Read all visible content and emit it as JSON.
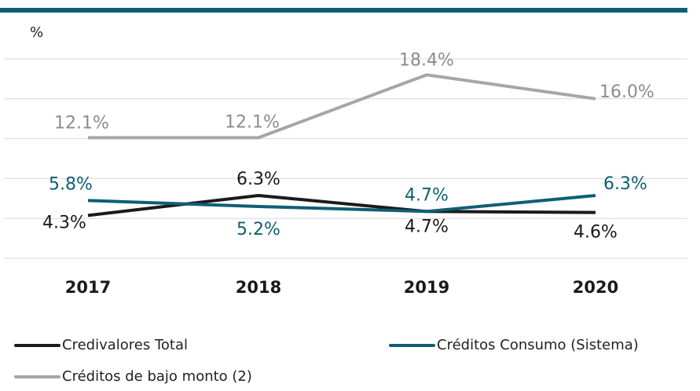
{
  "chart_data": {
    "type": "line",
    "y_label": "%",
    "categories": [
      "2017",
      "2018",
      "2019",
      "2020"
    ],
    "series": [
      {
        "name": "Credivalores Total",
        "color": "#1a1a1a",
        "values": [
          4.3,
          6.3,
          4.7,
          4.6
        ],
        "value_labels": [
          "4.3%",
          "6.3%",
          "4.7%",
          "4.6%"
        ]
      },
      {
        "name": "Créditos Consumo (Sistema)",
        "color": "#0e5f73",
        "values": [
          5.8,
          5.2,
          4.7,
          6.3
        ],
        "value_labels": [
          "5.8%",
          "5.2%",
          "4.7%",
          "6.3%"
        ]
      },
      {
        "name": "Créditos de bajo monto (2)",
        "color": "#a6a6a6",
        "values": [
          12.1,
          12.1,
          18.4,
          16.0
        ],
        "value_labels": [
          "12.1%",
          "12.1%",
          "18.4%",
          "16.0%"
        ]
      }
    ],
    "ylim": [
      0,
      20
    ],
    "yticks": [
      0,
      4,
      8,
      12,
      16,
      20
    ],
    "grid": true
  }
}
